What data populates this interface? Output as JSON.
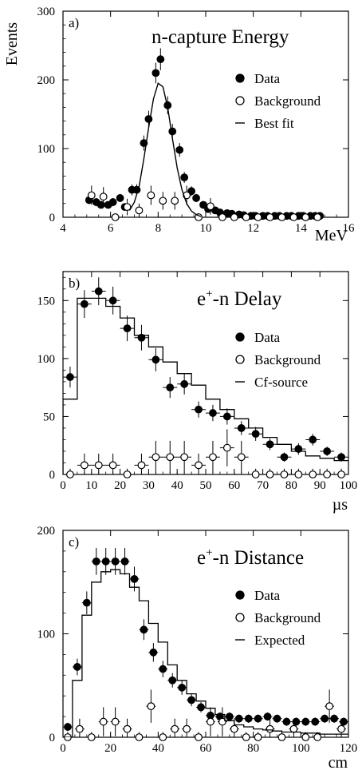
{
  "chart_data": [
    {
      "type": "scatter",
      "panel_label": "a)",
      "title": "n-capture  Energy",
      "ylabel": "Events",
      "xlabel": "MeV",
      "xlim": [
        4,
        16
      ],
      "ylim": [
        0,
        300
      ],
      "xticks": [
        4,
        6,
        8,
        10,
        12,
        14,
        16
      ],
      "yticks": [
        0,
        100,
        200,
        300
      ],
      "legend_position": "top-right",
      "legend": [
        {
          "label": "Data",
          "marker": "filled-circle"
        },
        {
          "label": "Background",
          "marker": "open-circle"
        },
        {
          "label": "Best fit",
          "marker": "line"
        }
      ],
      "series": [
        {
          "name": "Data",
          "style": "filled",
          "xerr": 0.15,
          "x": [
            5.1,
            5.4,
            5.6,
            5.9,
            6.1,
            6.4,
            6.6,
            6.9,
            7.1,
            7.4,
            7.6,
            7.9,
            8.1,
            8.4,
            8.6,
            8.9,
            9.1,
            9.4,
            9.6,
            9.9,
            10.1,
            10.4,
            10.6,
            10.9,
            11.1,
            11.4,
            11.6,
            11.9,
            12.1,
            12.4,
            12.6,
            12.9,
            13.1,
            13.4,
            13.6,
            13.9,
            14.1,
            14.4,
            14.6,
            14.8
          ],
          "y": [
            25,
            22,
            18,
            18,
            22,
            28,
            15,
            40,
            40,
            108,
            143,
            210,
            230,
            163,
            125,
            98,
            58,
            38,
            28,
            18,
            12,
            10,
            7,
            6,
            5,
            4,
            3,
            2,
            2,
            2,
            2,
            2,
            2,
            2,
            2,
            2,
            2,
            2,
            2,
            2
          ],
          "yerr": [
            6,
            6,
            5,
            5,
            6,
            6,
            5,
            8,
            8,
            11,
            12,
            15,
            16,
            13,
            11,
            10,
            8,
            7,
            6,
            5,
            4,
            4,
            3,
            3,
            3,
            2,
            2,
            2,
            2,
            2,
            2,
            2,
            2,
            2,
            2,
            2,
            2,
            2,
            2,
            2
          ]
        },
        {
          "name": "Background",
          "style": "open",
          "xerr": 0.15,
          "x": [
            5.2,
            5.7,
            6.2,
            6.7,
            7.2,
            7.7,
            8.2,
            8.7,
            9.2,
            9.7,
            10.2,
            10.7,
            11.2,
            11.7,
            12.2,
            12.7,
            13.2,
            13.7,
            14.2,
            14.7
          ],
          "y": [
            32,
            30,
            0,
            15,
            10,
            32,
            24,
            24,
            32,
            0,
            16,
            0,
            0,
            0,
            0,
            0,
            0,
            0,
            0,
            0
          ],
          "yerr": [
            14,
            14,
            6,
            12,
            10,
            14,
            13,
            13,
            14,
            6,
            12,
            6,
            6,
            6,
            6,
            6,
            6,
            6,
            6,
            6
          ]
        },
        {
          "name": "Best fit",
          "style": "line",
          "x": [
            6.8,
            7.0,
            7.2,
            7.4,
            7.6,
            7.8,
            8.0,
            8.2,
            8.4,
            8.6,
            8.8,
            9.0,
            9.2,
            9.4,
            9.6,
            9.8
          ],
          "y": [
            10,
            22,
            45,
            85,
            130,
            172,
            195,
            190,
            160,
            115,
            72,
            40,
            20,
            9,
            4,
            1
          ]
        }
      ]
    },
    {
      "type": "scatter",
      "panel_label": "b)",
      "title_base": "e",
      "title_sup": "+",
      "title_rest": "-n  Delay",
      "xlabel": "µs",
      "xlim": [
        0,
        100
      ],
      "ylim": [
        0,
        175
      ],
      "xticks": [
        0,
        10,
        20,
        30,
        40,
        50,
        60,
        70,
        80,
        90,
        100
      ],
      "yticks": [
        0,
        50,
        100,
        150
      ],
      "legend_position": "top-right",
      "legend": [
        {
          "label": "Data",
          "marker": "filled-circle"
        },
        {
          "label": "Background",
          "marker": "open-circle"
        },
        {
          "label": "Cf-source",
          "marker": "line"
        }
      ],
      "series": [
        {
          "name": "Data",
          "style": "filled",
          "xerr": 2.5,
          "x": [
            2.5,
            7.5,
            12.5,
            17.5,
            22.5,
            27.5,
            32.5,
            37.5,
            42.5,
            47.5,
            52.5,
            57.5,
            62.5,
            67.5,
            72.5,
            77.5,
            82.5,
            87.5,
            92.5,
            97.5
          ],
          "y": [
            84,
            147,
            158,
            150,
            126,
            118,
            99,
            75,
            78,
            56,
            53,
            50,
            40,
            35,
            26,
            15,
            22,
            30,
            20,
            15
          ],
          "yerr": [
            9,
            12,
            12,
            12,
            11,
            11,
            10,
            9,
            9,
            7,
            7,
            7,
            6,
            6,
            5,
            4,
            5,
            5,
            4,
            4
          ]
        },
        {
          "name": "Background",
          "style": "open",
          "xerr": 2.5,
          "x": [
            2.5,
            7.5,
            12.5,
            17.5,
            22.5,
            27.5,
            32.5,
            37.5,
            42.5,
            47.5,
            52.5,
            57.5,
            62.5,
            67.5,
            72.5,
            77.5,
            82.5,
            87.5,
            92.5,
            97.5
          ],
          "y": [
            0,
            8,
            8,
            8,
            0,
            8,
            15,
            15,
            15,
            8,
            15,
            23,
            15,
            0,
            0,
            0,
            0,
            0,
            0,
            0
          ],
          "yerr": [
            5,
            10,
            10,
            10,
            5,
            10,
            14,
            14,
            14,
            10,
            14,
            16,
            14,
            5,
            5,
            5,
            5,
            5,
            5,
            5
          ]
        },
        {
          "name": "Cf-source",
          "style": "step",
          "edges": [
            0,
            5,
            10,
            15,
            20,
            25,
            30,
            35,
            40,
            45,
            50,
            55,
            60,
            65,
            70,
            75,
            80,
            85,
            90,
            95,
            100
          ],
          "values": [
            65,
            152,
            152,
            145,
            135,
            120,
            110,
            97,
            87,
            77,
            65,
            56,
            48,
            40,
            32,
            26,
            20,
            16,
            14,
            12
          ]
        }
      ]
    },
    {
      "type": "scatter",
      "panel_label": "c)",
      "title_base": "e",
      "title_sup": "+",
      "title_rest": "-n  Distance",
      "xlabel": "cm",
      "xlim": [
        0,
        120
      ],
      "ylim": [
        0,
        200
      ],
      "xticks": [
        0,
        20,
        40,
        60,
        80,
        100,
        120
      ],
      "yticks": [
        0,
        100,
        200
      ],
      "legend_position": "top-right",
      "legend": [
        {
          "label": "Data",
          "marker": "filled-circle"
        },
        {
          "label": "Background",
          "marker": "open-circle"
        },
        {
          "label": "Expected",
          "marker": "line"
        }
      ],
      "series": [
        {
          "name": "Data",
          "style": "filled",
          "xerr": 2,
          "x": [
            2,
            6,
            10,
            14,
            18,
            22,
            26,
            30,
            34,
            38,
            42,
            46,
            50,
            54,
            58,
            62,
            66,
            70,
            74,
            78,
            82,
            86,
            90,
            94,
            98,
            102,
            106,
            110,
            114,
            118
          ],
          "y": [
            10,
            68,
            130,
            170,
            170,
            170,
            170,
            153,
            104,
            82,
            66,
            55,
            48,
            36,
            29,
            21,
            20,
            20,
            18,
            18,
            18,
            20,
            18,
            15,
            15,
            15,
            15,
            18,
            18,
            15
          ],
          "yerr": [
            4,
            8,
            11,
            13,
            13,
            13,
            13,
            12,
            10,
            9,
            8,
            7,
            7,
            6,
            5,
            5,
            4,
            4,
            4,
            4,
            4,
            4,
            4,
            4,
            4,
            4,
            4,
            4,
            4,
            4
          ]
        },
        {
          "name": "Background",
          "style": "open",
          "xerr": 2,
          "x": [
            2,
            7,
            12,
            17,
            22,
            27,
            32,
            37,
            42,
            47,
            52,
            57,
            62,
            67,
            72,
            77,
            82,
            87,
            92,
            97,
            102,
            107,
            112,
            117
          ],
          "y": [
            0,
            8,
            0,
            15,
            15,
            8,
            0,
            30,
            0,
            8,
            8,
            0,
            15,
            15,
            8,
            0,
            0,
            8,
            0,
            8,
            0,
            0,
            30,
            8
          ],
          "yerr": [
            5,
            10,
            5,
            14,
            14,
            10,
            5,
            16,
            5,
            10,
            10,
            5,
            14,
            14,
            10,
            5,
            5,
            10,
            5,
            10,
            5,
            5,
            16,
            10
          ]
        },
        {
          "name": "Expected",
          "style": "step",
          "edges": [
            0,
            4,
            8,
            12,
            16,
            20,
            24,
            28,
            32,
            36,
            40,
            44,
            48,
            52,
            56,
            60,
            64,
            68,
            72,
            76,
            80,
            84,
            88,
            92,
            96,
            100,
            104,
            108,
            112,
            116,
            120
          ],
          "values": [
            0,
            55,
            118,
            150,
            160,
            162,
            158,
            145,
            132,
            110,
            92,
            70,
            55,
            42,
            35,
            28,
            22,
            16,
            12,
            10,
            8,
            7,
            6,
            5,
            5,
            4,
            4,
            3,
            3,
            3
          ]
        }
      ]
    }
  ]
}
